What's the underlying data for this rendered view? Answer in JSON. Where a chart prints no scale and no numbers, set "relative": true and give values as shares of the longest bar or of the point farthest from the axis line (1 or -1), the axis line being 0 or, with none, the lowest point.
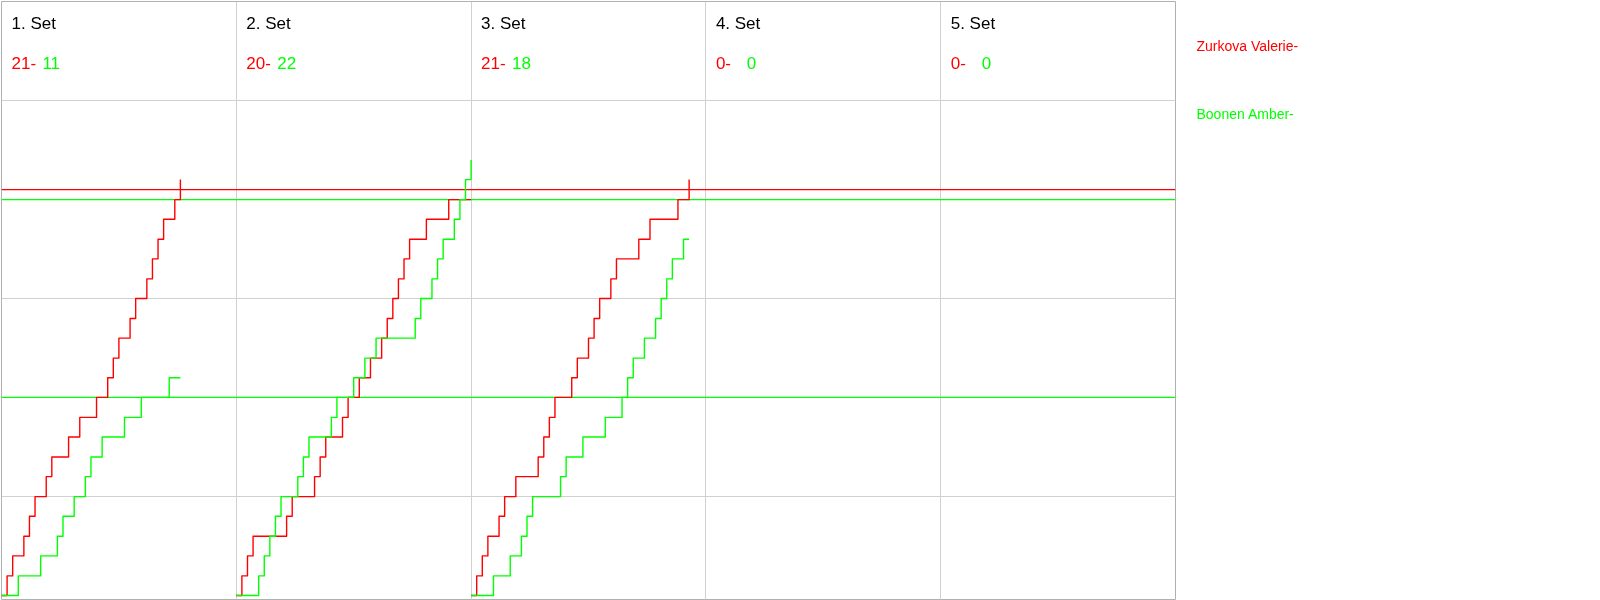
{
  "chart_data": {
    "type": "step",
    "relative": true,
    "categories": [
      null,
      null,
      null,
      null,
      null,
      null,
      null,
      null,
      null,
      null,
      null,
      null,
      null,
      null,
      null,
      null,
      null,
      null,
      null,
      null,
      null,
      null,
      null,
      null,
      null,
      null,
      null,
      null,
      null,
      null,
      null,
      null,
      null,
      null,
      null,
      null,
      null,
      null,
      null,
      null,
      null,
      null,
      null,
      null,
      null,
      null,
      null,
      null,
      null,
      null,
      null,
      null,
      null,
      null,
      null,
      null,
      null,
      null,
      null,
      null,
      null,
      null,
      null,
      null,
      null,
      null,
      null,
      null,
      null,
      null,
      null,
      null,
      null,
      null,
      null,
      null,
      null,
      null,
      null,
      null,
      null,
      null,
      null,
      null,
      null,
      null,
      null,
      null,
      null,
      null,
      null,
      null,
      null,
      null,
      null,
      null,
      null,
      null,
      null,
      null,
      null,
      null,
      null,
      null,
      null,
      null,
      null,
      null,
      null,
      null,
      null,
      null,
      null,
      null,
      null,
      null,
      null,
      null,
      null,
      null,
      null,
      null,
      null,
      null,
      null,
      null,
      null,
      null,
      null,
      null,
      null,
      null,
      null,
      null,
      null,
      null,
      null,
      null,
      null,
      null,
      null,
      null,
      null,
      null,
      null,
      null,
      null,
      null,
      null,
      null,
      null,
      null,
      null,
      null,
      null,
      null,
      null,
      null,
      null,
      null,
      null,
      null,
      null,
      null,
      null,
      null,
      null,
      null,
      null,
      null,
      null,
      null,
      null,
      null,
      null,
      null,
      null,
      null,
      null,
      null,
      null,
      null,
      null,
      null,
      null,
      null,
      null,
      null,
      null,
      null,
      null,
      null,
      null,
      null,
      null,
      null,
      null,
      null,
      null,
      null,
      null,
      null,
      null,
      null,
      null,
      null,
      null,
      null,
      null,
      null,
      null
    ],
    "tick_labels": false,
    "grid": true,
    "annotations": [
      "1. Set",
      "21-",
      "11",
      "2. Set",
      "20-",
      "22",
      "3. Set",
      "21-",
      "18",
      "4. Set",
      "0-",
      "0",
      "5. Set",
      "0-",
      "0"
    ],
    "ref_lines": [
      {
        "axis": "y",
        "value": 0.932,
        "color": "#ff0000"
      },
      {
        "axis": "y",
        "value": 0.909,
        "color": "#00ff00"
      },
      {
        "axis": "y",
        "value": 0.455,
        "color": "#00ff00"
      }
    ],
    "series": [
      {
        "name": "Zurkova Valerie-",
        "color": "#ff0000",
        "values": [
          0,
          0.045,
          0.091,
          0.091,
          0.136,
          0.182,
          0.227,
          0.227,
          0.273,
          0.318,
          0.318,
          0.318,
          0.364,
          0.364,
          0.409,
          0.409,
          0.409,
          0.455,
          0.455,
          0.5,
          0.545,
          0.591,
          0.591,
          0.636,
          0.682,
          0.682,
          0.727,
          0.773,
          0.818,
          0.864,
          0.864,
          0.909,
          0.955,
          null,
          null,
          null,
          null,
          null,
          null,
          null,
          null,
          null,
          null,
          null,
          null,
          null,
          null,
          null,
          null,
          null,
          null,
          null,
          null,
          null,
          null,
          null,
          null,
          null,
          null,
          null,
          null,
          null,
          null,
          null,
          null,
          null,
          null,
          null,
          null,
          null,
          null,
          null,
          null,
          null,
          null,
          null,
          null,
          null,
          null,
          null,
          null,
          null,
          null,
          null,
          null,
          null,
          null,
          null,
          null,
          null,
          null,
          null,
          null,
          null,
          null,
          null,
          null,
          null,
          null,
          null,
          null,
          null,
          null,
          null,
          null,
          null,
          null,
          null,
          null,
          null,
          null,
          null,
          null,
          null,
          null,
          null,
          null,
          null,
          null,
          null,
          null,
          null,
          null,
          null,
          null,
          null,
          null,
          null,
          null,
          null,
          null,
          null,
          null,
          null,
          null,
          null,
          null,
          null,
          null,
          null,
          null,
          null,
          null,
          null,
          null,
          null,
          null,
          null,
          null,
          null,
          null,
          null,
          null,
          null,
          null,
          null,
          null,
          null,
          null,
          null,
          null,
          null,
          null,
          null,
          null,
          null,
          null,
          null,
          null,
          null,
          null,
          null,
          null,
          null,
          null,
          null,
          null,
          null,
          null,
          null,
          null,
          null,
          null,
          null,
          null,
          null,
          null,
          null,
          null,
          null,
          null,
          null,
          null,
          null,
          null,
          null,
          null,
          null,
          null,
          null,
          null,
          null,
          null,
          null,
          null,
          null,
          null,
          null,
          null,
          null,
          null
        ]
      },
      {
        "name": "Boonen Amber-",
        "color": "#00ff00",
        "values": [
          0,
          0,
          0,
          0.045,
          0.045,
          0.045,
          0.045,
          0.091,
          0.091,
          0.091,
          0.136,
          0.182,
          0.182,
          0.227,
          0.227,
          0.273,
          0.318,
          0.318,
          0.364,
          0.364,
          0.364,
          0.364,
          0.409,
          0.409,
          0.409,
          0.455,
          0.455,
          0.455,
          0.455,
          0.455,
          0.5,
          0.5,
          0.5,
          null,
          null,
          null,
          null,
          null,
          null,
          null,
          null,
          null,
          null,
          null,
          null,
          null,
          null,
          null,
          null,
          null,
          null,
          null,
          null,
          null,
          null,
          null,
          null,
          null,
          null,
          null,
          null,
          null,
          null,
          null,
          null,
          null,
          null,
          null,
          null,
          null,
          null,
          null,
          null,
          null,
          null,
          null,
          null,
          null,
          null,
          null,
          null,
          null,
          null,
          null,
          null,
          null,
          null,
          null,
          null,
          null,
          null,
          null,
          null,
          null,
          null,
          null,
          null,
          null,
          null,
          null,
          null,
          null,
          null,
          null,
          null,
          null,
          null,
          null,
          null,
          null,
          null,
          null,
          null,
          null,
          null,
          null,
          null,
          null,
          null,
          null,
          null,
          null,
          null,
          null,
          null,
          null,
          null,
          null,
          null,
          null,
          null,
          null,
          null,
          null,
          null,
          null,
          null,
          null,
          null,
          null,
          null,
          null,
          null,
          null,
          null,
          null,
          null,
          null,
          null,
          null,
          null,
          null,
          null,
          null,
          null,
          null,
          null,
          null,
          null,
          null,
          null,
          null,
          null,
          null,
          null,
          null,
          null,
          null,
          null,
          null,
          null,
          null,
          null,
          null,
          null,
          null,
          null,
          null,
          null,
          null,
          null,
          null,
          null,
          null,
          null,
          null,
          null,
          null,
          null,
          null,
          null,
          null,
          null,
          null,
          null,
          null,
          null,
          null,
          null,
          null,
          null,
          null,
          null,
          null,
          null,
          null,
          null,
          null,
          null,
          null,
          null
        ]
      },
      {
        "color": "#ff0000",
        "values": [
          null,
          null,
          null,
          null,
          null,
          null,
          null,
          null,
          null,
          null,
          null,
          null,
          null,
          null,
          null,
          null,
          null,
          null,
          null,
          null,
          null,
          null,
          null,
          null,
          null,
          null,
          null,
          null,
          null,
          null,
          null,
          null,
          null,
          null,
          null,
          null,
          null,
          null,
          null,
          null,
          null,
          null,
          0,
          0.045,
          0.091,
          0.136,
          0.136,
          0.136,
          0.136,
          0.136,
          0.136,
          0.182,
          0.227,
          0.227,
          0.227,
          0.227,
          0.273,
          0.318,
          0.364,
          0.364,
          0.364,
          0.409,
          0.455,
          0.455,
          0.5,
          0.5,
          0.545,
          0.545,
          0.591,
          0.636,
          0.682,
          0.727,
          0.773,
          0.818,
          0.818,
          0.818,
          0.864,
          0.864,
          0.864,
          0.864,
          0.909,
          0.909,
          0.909,
          0.909,
          0.909,
          null,
          null,
          null,
          null,
          null,
          null,
          null,
          null,
          null,
          null,
          null,
          null,
          null,
          null,
          null,
          null,
          null,
          null,
          null,
          null,
          null,
          null,
          null,
          null,
          null,
          null,
          null,
          null,
          null,
          null,
          null,
          null,
          null,
          null,
          null,
          null,
          null,
          null,
          null,
          null,
          null,
          null,
          null,
          null,
          null,
          null,
          null,
          null,
          null,
          null,
          null,
          null,
          null,
          null,
          null,
          null,
          null,
          null,
          null,
          null,
          null,
          null,
          null,
          null,
          null,
          null,
          null,
          null,
          null,
          null,
          null,
          null,
          null,
          null,
          null,
          null,
          null,
          null,
          null,
          null,
          null,
          null,
          null,
          null,
          null,
          null,
          null,
          null,
          null,
          null,
          null,
          null,
          null,
          null,
          null,
          null,
          null,
          null,
          null,
          null,
          null,
          null,
          null,
          null,
          null,
          null,
          null,
          null,
          null,
          null,
          null,
          null,
          null,
          null,
          null,
          null,
          null,
          null,
          null,
          null,
          null,
          null,
          null,
          null,
          null,
          null
        ]
      },
      {
        "color": "#00ff00",
        "values": [
          null,
          null,
          null,
          null,
          null,
          null,
          null,
          null,
          null,
          null,
          null,
          null,
          null,
          null,
          null,
          null,
          null,
          null,
          null,
          null,
          null,
          null,
          null,
          null,
          null,
          null,
          null,
          null,
          null,
          null,
          null,
          null,
          null,
          null,
          null,
          null,
          null,
          null,
          null,
          null,
          null,
          null,
          0,
          0,
          0,
          0,
          0.045,
          0.091,
          0.136,
          0.182,
          0.227,
          0.227,
          0.227,
          0.273,
          0.318,
          0.364,
          0.364,
          0.364,
          0.364,
          0.409,
          0.455,
          0.455,
          0.455,
          0.5,
          0.5,
          0.545,
          0.545,
          0.591,
          0.591,
          0.591,
          0.591,
          0.591,
          0.591,
          0.591,
          0.636,
          0.682,
          0.682,
          0.727,
          0.773,
          0.818,
          0.818,
          0.864,
          0.909,
          0.955,
          1,
          null,
          null,
          null,
          null,
          null,
          null,
          null,
          null,
          null,
          null,
          null,
          null,
          null,
          null,
          null,
          null,
          null,
          null,
          null,
          null,
          null,
          null,
          null,
          null,
          null,
          null,
          null,
          null,
          null,
          null,
          null,
          null,
          null,
          null,
          null,
          null,
          null,
          null,
          null,
          null,
          null,
          null,
          null,
          null,
          null,
          null,
          null,
          null,
          null,
          null,
          null,
          null,
          null,
          null,
          null,
          null,
          null,
          null,
          null,
          null,
          null,
          null,
          null,
          null,
          null,
          null,
          null,
          null,
          null,
          null,
          null,
          null,
          null,
          null,
          null,
          null,
          null,
          null,
          null,
          null,
          null,
          null,
          null,
          null,
          null,
          null,
          null,
          null,
          null,
          null,
          null,
          null,
          null,
          null,
          null,
          null,
          null,
          null,
          null,
          null,
          null,
          null,
          null,
          null,
          null,
          null,
          null,
          null,
          null,
          null,
          null,
          null,
          null,
          null,
          null,
          null,
          null,
          null,
          null,
          null,
          null,
          null,
          null,
          null,
          null,
          null
        ]
      },
      {
        "color": "#ff0000",
        "values": [
          null,
          null,
          null,
          null,
          null,
          null,
          null,
          null,
          null,
          null,
          null,
          null,
          null,
          null,
          null,
          null,
          null,
          null,
          null,
          null,
          null,
          null,
          null,
          null,
          null,
          null,
          null,
          null,
          null,
          null,
          null,
          null,
          null,
          null,
          null,
          null,
          null,
          null,
          null,
          null,
          null,
          null,
          null,
          null,
          null,
          null,
          null,
          null,
          null,
          null,
          null,
          null,
          null,
          null,
          null,
          null,
          null,
          null,
          null,
          null,
          null,
          null,
          null,
          null,
          null,
          null,
          null,
          null,
          null,
          null,
          null,
          null,
          null,
          null,
          null,
          null,
          null,
          null,
          null,
          null,
          null,
          null,
          null,
          null,
          0,
          0.045,
          0.091,
          0.136,
          0.136,
          0.182,
          0.227,
          0.227,
          0.273,
          0.273,
          0.273,
          0.273,
          0.318,
          0.364,
          0.409,
          0.455,
          0.455,
          0.455,
          0.5,
          0.545,
          0.545,
          0.591,
          0.636,
          0.682,
          0.682,
          0.727,
          0.773,
          0.773,
          0.773,
          0.773,
          0.818,
          0.818,
          0.864,
          0.864,
          0.864,
          0.864,
          0.864,
          0.909,
          0.909,
          0.955,
          null,
          null,
          null,
          null,
          null,
          null,
          null,
          null,
          null,
          null,
          null,
          null,
          null,
          null,
          null,
          null,
          null,
          null,
          null,
          null,
          null,
          null,
          null,
          null,
          null,
          null,
          null,
          null,
          null,
          null,
          null,
          null,
          null,
          null,
          null,
          null,
          null,
          null,
          null,
          null,
          null,
          null,
          null,
          null,
          null,
          null,
          null,
          null,
          null,
          null,
          null,
          null,
          null,
          null,
          null,
          null,
          null,
          null,
          null,
          null,
          null,
          null,
          null,
          null,
          null,
          null,
          null,
          null,
          null,
          null,
          null,
          null,
          null,
          null,
          null,
          null,
          null,
          null,
          null,
          null,
          null,
          null,
          null,
          null,
          null,
          null,
          null
        ]
      },
      {
        "color": "#00ff00",
        "values": [
          null,
          null,
          null,
          null,
          null,
          null,
          null,
          null,
          null,
          null,
          null,
          null,
          null,
          null,
          null,
          null,
          null,
          null,
          null,
          null,
          null,
          null,
          null,
          null,
          null,
          null,
          null,
          null,
          null,
          null,
          null,
          null,
          null,
          null,
          null,
          null,
          null,
          null,
          null,
          null,
          null,
          null,
          null,
          null,
          null,
          null,
          null,
          null,
          null,
          null,
          null,
          null,
          null,
          null,
          null,
          null,
          null,
          null,
          null,
          null,
          null,
          null,
          null,
          null,
          null,
          null,
          null,
          null,
          null,
          null,
          null,
          null,
          null,
          null,
          null,
          null,
          null,
          null,
          null,
          null,
          null,
          null,
          null,
          null,
          0,
          0,
          0,
          0,
          0.045,
          0.045,
          0.045,
          0.091,
          0.091,
          0.136,
          0.182,
          0.227,
          0.227,
          0.227,
          0.227,
          0.227,
          0.273,
          0.318,
          0.318,
          0.318,
          0.364,
          0.364,
          0.364,
          0.364,
          0.409,
          0.409,
          0.409,
          0.455,
          0.5,
          0.545,
          0.545,
          0.591,
          0.591,
          0.636,
          0.682,
          0.727,
          0.773,
          0.773,
          0.818,
          0.818,
          null,
          null,
          null,
          null,
          null,
          null,
          null,
          null,
          null,
          null,
          null,
          null,
          null,
          null,
          null,
          null,
          null,
          null,
          null,
          null,
          null,
          null,
          null,
          null,
          null,
          null,
          null,
          null,
          null,
          null,
          null,
          null,
          null,
          null,
          null,
          null,
          null,
          null,
          null,
          null,
          null,
          null,
          null,
          null,
          null,
          null,
          null,
          null,
          null,
          null,
          null,
          null,
          null,
          null,
          null,
          null,
          null,
          null,
          null,
          null,
          null,
          null,
          null,
          null,
          null,
          null,
          null,
          null,
          null,
          null,
          null,
          null,
          null,
          null,
          null,
          null,
          null,
          null,
          null,
          null,
          null,
          null,
          null,
          null,
          null,
          null,
          null
        ]
      }
    ]
  }
}
